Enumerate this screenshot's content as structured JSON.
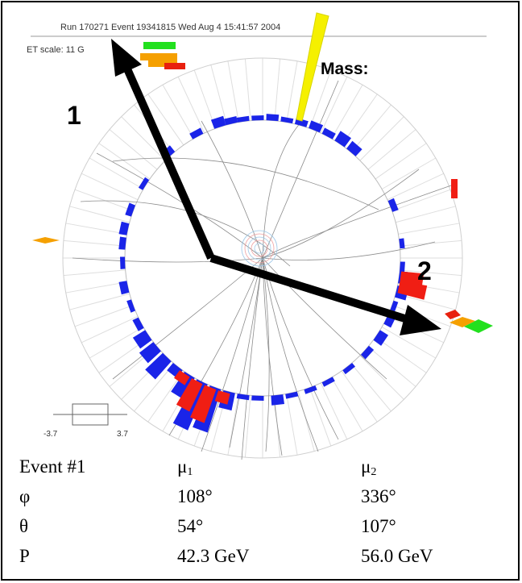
{
  "header": {
    "run_info": "Run 170271 Event 19341815 Wed Aug  4 15:41:57 2004",
    "et_scale": "ET scale: 11 G"
  },
  "labels": {
    "muon_1": "1",
    "muon_2": "2",
    "mass": "Mass:"
  },
  "eta_scale": {
    "min": "-3.7",
    "max": "3.7"
  },
  "colors": {
    "em_tower": "#1a24e8",
    "had_tower": "#f01e14",
    "jet": "#f5f000",
    "muon_arrow": "#000000",
    "legend_green": "#22e01e",
    "legend_orange": "#f5a000",
    "legend_red": "#e8200e"
  },
  "table": {
    "header": {
      "label": "Event #1",
      "mu1": "μ",
      "mu1_sub": "1",
      "mu2": "μ",
      "mu2_sub": "2"
    },
    "rows": [
      {
        "label": "φ",
        "mu1": "108°",
        "mu2": "336°"
      },
      {
        "label": "θ",
        "mu1": "54°",
        "mu2": "107°"
      },
      {
        "label": "P",
        "mu1": "42.3 GeV",
        "mu2": "56.0 GeV"
      }
    ]
  }
}
